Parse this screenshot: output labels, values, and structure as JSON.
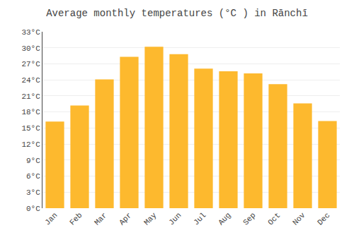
{
  "chart_data": {
    "type": "bar",
    "title": "Average monthly temperatures (°C ) in Rānchī",
    "categories": [
      "Jan",
      "Feb",
      "Mar",
      "Apr",
      "May",
      "Jun",
      "Jul",
      "Aug",
      "Sep",
      "Oct",
      "Nov",
      "Dec"
    ],
    "values": [
      16.2,
      19.2,
      24.1,
      28.3,
      30.2,
      28.8,
      26.1,
      25.6,
      25.2,
      23.2,
      19.6,
      16.3
    ],
    "color": "#FDB92E",
    "ylim": [
      0,
      33
    ],
    "yticks": [
      {
        "value": 0,
        "label": "0°C"
      },
      {
        "value": 3,
        "label": "3°C"
      },
      {
        "value": 6,
        "label": "6°C"
      },
      {
        "value": 9,
        "label": "9°C"
      },
      {
        "value": 12,
        "label": "12°C"
      },
      {
        "value": 15,
        "label": "15°C"
      },
      {
        "value": 18,
        "label": "18°C"
      },
      {
        "value": 21,
        "label": "21°C"
      },
      {
        "value": 24,
        "label": "24°C"
      },
      {
        "value": 27,
        "label": "27°C"
      },
      {
        "value": 30,
        "label": "30°C"
      },
      {
        "value": 33,
        "label": "33°C"
      }
    ],
    "grid": true
  }
}
